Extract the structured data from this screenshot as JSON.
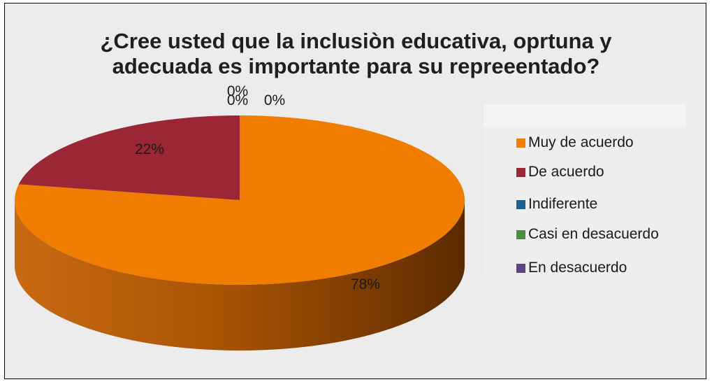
{
  "chart_data": {
    "type": "pie",
    "title_lines": [
      "¿Cree usted que la inclusiòn educativa, oprtuna  y",
      "adecuada es importante para su repreeentado?"
    ],
    "slices": [
      {
        "label": "Muy de acuerdo",
        "value": 78,
        "data_label": "78%",
        "color": "#f07d00"
      },
      {
        "label": "De acuerdo",
        "value": 22,
        "data_label": "22%",
        "color": "#9b2736"
      },
      {
        "label": "Indiferente",
        "value": 0,
        "data_label": "0%",
        "color": "#1f5f8b"
      },
      {
        "label": "Casi en desacuerdo",
        "value": 0,
        "data_label": "0%",
        "color": "#4a8f3c"
      },
      {
        "label": "En desacuerdo",
        "value": 0,
        "data_label": "0%",
        "color": "#5e457e"
      }
    ],
    "legend_position": "right",
    "style": "3d-pie"
  }
}
